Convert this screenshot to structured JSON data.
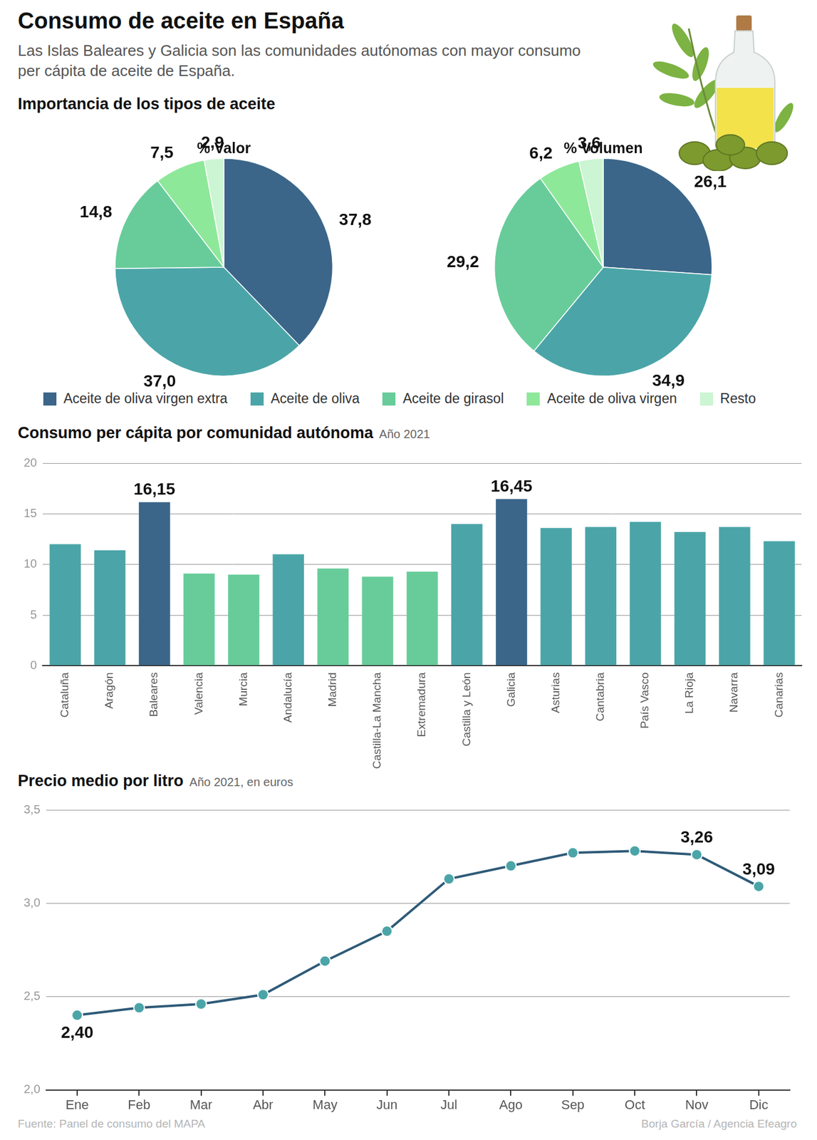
{
  "title": "Consumo de aceite en España",
  "subtitle": "Las Islas Baleares y Galicia son las comunidades autónomas con mayor consumo per cápita de aceite de España.",
  "section_title": "Importancia de los tipos de aceite",
  "source": "Fuente: Panel de consumo del MAPA",
  "credit": "Borja García / Agencia Efeagro",
  "chart_data": [
    {
      "type": "pie",
      "title": "% Valor",
      "categories": [
        "Aceite de oliva virgen extra",
        "Aceite de oliva",
        "Aceite de girasol",
        "Aceite de oliva virgen",
        "Resto"
      ],
      "values": [
        37.8,
        37.0,
        14.8,
        7.5,
        2.9
      ],
      "value_labels": [
        "37,8",
        "37,0",
        "14,8",
        "7,5",
        "2,9"
      ],
      "colors": [
        "#3b6689",
        "#4ba5a8",
        "#68cc9a",
        "#8ee89a",
        "#ccf5d3"
      ],
      "data_labels": true,
      "legend": "bottom"
    },
    {
      "type": "pie",
      "title": "% Volumen",
      "categories": [
        "Aceite de oliva virgen extra",
        "Aceite de oliva",
        "Aceite de girasol",
        "Aceite de oliva virgen",
        "Resto"
      ],
      "values": [
        26.1,
        34.9,
        29.2,
        6.2,
        3.6
      ],
      "value_labels": [
        "26,1",
        "34,9",
        "29,2",
        "6,2",
        "3,6"
      ],
      "colors": [
        "#3b6689",
        "#4ba5a8",
        "#68cc9a",
        "#8ee89a",
        "#ccf5d3"
      ],
      "data_labels": true,
      "legend": "bottom"
    },
    {
      "type": "bar",
      "title": "Consumo per cápita por comunidad autónoma",
      "subtitle": "Año 2021",
      "categories": [
        "Cataluña",
        "Aragón",
        "Baleares",
        "Valencia",
        "Murcia",
        "Andalucía",
        "Madrid",
        "Castilla-La Mancha",
        "Extremadura",
        "Castilla y León",
        "Galicia",
        "Asturias",
        "Cantabria",
        "País Vasco",
        "La Rioja",
        "Navarra",
        "Canarias"
      ],
      "values": [
        12.0,
        11.4,
        16.15,
        9.1,
        9.0,
        11.0,
        9.6,
        8.8,
        9.3,
        14.0,
        16.45,
        13.6,
        13.7,
        14.2,
        13.2,
        13.7,
        12.3
      ],
      "value_labels": [
        null,
        null,
        "16,15",
        null,
        null,
        null,
        null,
        null,
        null,
        null,
        "16,45",
        null,
        null,
        null,
        null,
        null,
        null
      ],
      "colors": [
        "#4ba5a8",
        "#4ba5a8",
        "#3b6689",
        "#68cc9a",
        "#68cc9a",
        "#4ba5a8",
        "#68cc9a",
        "#68cc9a",
        "#68cc9a",
        "#4ba5a8",
        "#3b6689",
        "#4ba5a8",
        "#4ba5a8",
        "#4ba5a8",
        "#4ba5a8",
        "#4ba5a8",
        "#4ba5a8"
      ],
      "ylim": [
        0,
        20
      ],
      "yticks": [
        0,
        5,
        10,
        15,
        20
      ],
      "grid": true
    },
    {
      "type": "line",
      "title": "Precio medio por litro",
      "subtitle": "Año 2021, en euros",
      "categories": [
        "Ene",
        "Feb",
        "Mar",
        "Abr",
        "May",
        "Jun",
        "Jul",
        "Ago",
        "Sep",
        "Oct",
        "Nov",
        "Dic"
      ],
      "values": [
        2.4,
        2.44,
        2.46,
        2.51,
        2.69,
        2.85,
        3.13,
        3.2,
        3.27,
        3.28,
        3.26,
        3.09
      ],
      "value_labels": [
        "2,40",
        null,
        null,
        null,
        null,
        null,
        null,
        null,
        null,
        null,
        "3,26",
        "3,09"
      ],
      "color": "#2e5a78",
      "marker": "circle",
      "ylim": [
        2.0,
        3.5
      ],
      "yticks": [
        {
          "value": 2.0,
          "label": "2,0"
        },
        {
          "value": 2.5,
          "label": "2,5"
        },
        {
          "value": 3.0,
          "label": "3,0"
        },
        {
          "value": 3.5,
          "label": "3,5"
        }
      ],
      "grid": true
    }
  ]
}
